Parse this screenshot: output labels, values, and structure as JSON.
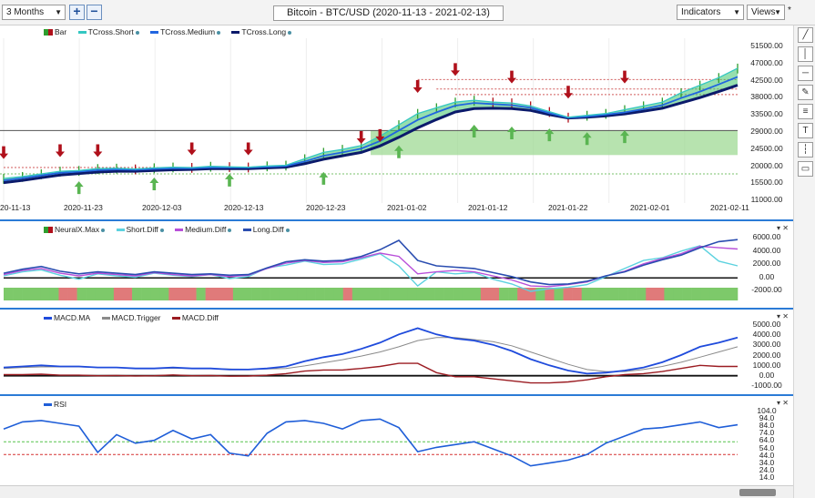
{
  "toolbar": {
    "range_select": "3 Months",
    "zoom_in": "+",
    "zoom_out": "−",
    "title": "Bitcoin - BTC/USD (2020-11-13 - 2021-02-13)",
    "indicators_label": "Indicators",
    "views_label": "Views",
    "pin": "*"
  },
  "right_toolbar": [
    "line-tool-icon",
    "vertical-line-icon",
    "horizontal-line-icon",
    "pencil-icon",
    "fibonacci-icon",
    "text-icon",
    "vertical-dotted-icon",
    "comment-icon"
  ],
  "colors": {
    "short": "#35c7c2",
    "medium": "#2166e0",
    "long": "#0b1a6b",
    "up": "#2e9e2e",
    "down": "#b0101b",
    "neural_green": "#7dc96a",
    "neural_red": "#e07a7a",
    "short_diff": "#5cd2df",
    "medium_diff": "#b84fd9",
    "long_diff": "#2a4db0",
    "macd_ma": "#1f4bdc",
    "macd_trigger": "#8a8a8a",
    "macd_diff": "#9b1c22",
    "rsi": "#1f5ed8"
  },
  "price_panel": {
    "legend": {
      "bar": "Bar",
      "short": "TCross.Short",
      "medium": "TCross.Medium",
      "long": "TCross.Long"
    },
    "y_ticks": [
      "51500.00",
      "47000.00",
      "42500.00",
      "38000.00",
      "33500.00",
      "29000.00",
      "24500.00",
      "20000.00",
      "15500.00",
      "11000.00"
    ],
    "x_ticks": [
      "20-11-13",
      "2020-11-23",
      "2020-12-03",
      "2020-12-13",
      "2020-12-23",
      "2021-01-02",
      "2021-01-12",
      "2021-01-22",
      "2021-02-01",
      "2021-02-11"
    ]
  },
  "neural_panel": {
    "legend": {
      "neural": "NeuralX.Max",
      "short": "Short.Diff",
      "medium": "Medium.Diff",
      "long": "Long.Diff"
    },
    "y_ticks": [
      "6000.00",
      "4000.00",
      "2000.00",
      "0.00",
      "-2000.00"
    ]
  },
  "macd_panel": {
    "legend": {
      "ma": "MACD.MA",
      "trigger": "MACD.Trigger",
      "diff": "MACD.Diff"
    },
    "y_ticks": [
      "5000.00",
      "4000.00",
      "3000.00",
      "2000.00",
      "1000.00",
      "0.00",
      "-1000.00"
    ]
  },
  "rsi_panel": {
    "legend": {
      "rsi": "RSI"
    },
    "y_ticks": [
      "104.0",
      "94.0",
      "84.0",
      "74.0",
      "64.0",
      "54.0",
      "44.0",
      "34.0",
      "24.0",
      "14.0"
    ]
  },
  "chart_data": [
    {
      "type": "line",
      "title": "Bitcoin - BTC/USD (2020-11-13 - 2021-02-13)",
      "x_start": "2020-11-13",
      "x_end": "2021-02-11",
      "ylim": [
        11000,
        51500
      ],
      "series": [
        {
          "name": "TCross.Short",
          "values": [
            16300,
            16800,
            17500,
            18200,
            18400,
            18900,
            19000,
            18800,
            19100,
            19300,
            19200,
            19500,
            19400,
            19300,
            19600,
            19800,
            21500,
            23200,
            24000,
            25000,
            27500,
            30500,
            33500,
            35000,
            36500,
            37000,
            36500,
            36300,
            35500,
            34000,
            32500,
            33000,
            33500,
            34500,
            35500,
            36500,
            39000,
            41000,
            43000,
            45500
          ]
        },
        {
          "name": "TCross.Medium",
          "values": [
            15800,
            16400,
            17100,
            17800,
            18100,
            18500,
            18700,
            18600,
            18800,
            19000,
            19000,
            19200,
            19200,
            19200,
            19400,
            19600,
            20800,
            22300,
            23200,
            24200,
            26200,
            29000,
            31800,
            33800,
            35600,
            36300,
            36000,
            35700,
            35000,
            33600,
            32400,
            32700,
            33200,
            33800,
            34700,
            35700,
            37600,
            39300,
            41200,
            43200
          ]
        },
        {
          "name": "TCross.Long",
          "values": [
            15200,
            15800,
            16500,
            17200,
            17600,
            18000,
            18200,
            18200,
            18400,
            18600,
            18700,
            18900,
            18900,
            18900,
            19100,
            19300,
            20200,
            21400,
            22300,
            23200,
            24900,
            27200,
            29700,
            31900,
            33900,
            34800,
            34900,
            34800,
            34300,
            33200,
            32300,
            32500,
            32900,
            33400,
            34100,
            34900,
            36300,
            37700,
            39300,
            41000
          ]
        }
      ]
    },
    {
      "type": "line",
      "ylim": [
        -2000,
        6000
      ],
      "series": [
        {
          "name": "Short.Diff",
          "values": [
            300,
            900,
            1200,
            400,
            -200,
            600,
            300,
            100,
            700,
            400,
            200,
            500,
            -100,
            200,
            1500,
            1900,
            2500,
            2000,
            2100,
            2800,
            3600,
            1800,
            -1200,
            900,
            600,
            800,
            -200,
            -900,
            -2000,
            -1600,
            -1400,
            -1000,
            200,
            1400,
            2600,
            3000,
            4000,
            4800,
            2500,
            1800
          ]
        },
        {
          "name": "Medium.Diff",
          "values": [
            500,
            1100,
            1400,
            700,
            300,
            700,
            500,
            300,
            800,
            500,
            300,
            500,
            200,
            400,
            1400,
            2200,
            2600,
            2300,
            2400,
            3000,
            3700,
            3200,
            600,
            900,
            1100,
            900,
            300,
            -300,
            -1200,
            -1300,
            -1000,
            -600,
            300,
            1000,
            2100,
            2900,
            3600,
            4700,
            4500,
            4300
          ]
        },
        {
          "name": "Long.Diff",
          "values": [
            700,
            1300,
            1700,
            1000,
            600,
            900,
            700,
            500,
            900,
            700,
            500,
            600,
            400,
            500,
            1500,
            2400,
            2700,
            2500,
            2600,
            3200,
            4200,
            5600,
            2600,
            1800,
            1600,
            1400,
            800,
            200,
            -600,
            -1000,
            -900,
            -500,
            300,
            900,
            1900,
            2700,
            3400,
            4500,
            5400,
            5700
          ]
        }
      ]
    },
    {
      "type": "line",
      "ylim": [
        -1000,
        5000
      ],
      "series": [
        {
          "name": "MACD.MA",
          "values": [
            800,
            900,
            1000,
            900,
            900,
            800,
            800,
            700,
            700,
            800,
            700,
            700,
            600,
            600,
            700,
            900,
            1400,
            1800,
            2100,
            2600,
            3200,
            4000,
            4600,
            4000,
            3600,
            3400,
            3000,
            2400,
            1600,
            1000,
            500,
            200,
            300,
            500,
            800,
            1300,
            2000,
            2800,
            3200,
            3700
          ]
        },
        {
          "name": "MACD.Trigger",
          "values": [
            700,
            800,
            850,
            850,
            850,
            800,
            780,
            720,
            700,
            720,
            700,
            680,
            650,
            630,
            650,
            700,
            950,
            1250,
            1550,
            1900,
            2300,
            2800,
            3400,
            3700,
            3700,
            3500,
            3300,
            2900,
            2300,
            1700,
            1100,
            600,
            400,
            400,
            600,
            900,
            1300,
            1800,
            2300,
            2800
          ]
        },
        {
          "name": "MACD.Diff",
          "values": [
            100,
            100,
            150,
            50,
            50,
            0,
            20,
            -20,
            0,
            80,
            0,
            20,
            -50,
            -30,
            50,
            200,
            450,
            550,
            550,
            700,
            900,
            1200,
            1200,
            300,
            -100,
            -100,
            -300,
            -500,
            -700,
            -700,
            -600,
            -400,
            -100,
            100,
            200,
            400,
            700,
            1000,
            900,
            900
          ]
        }
      ]
    },
    {
      "type": "line",
      "ylim": [
        14,
        104
      ],
      "series": [
        {
          "name": "RSI",
          "values": [
            78,
            88,
            90,
            86,
            82,
            45,
            70,
            58,
            62,
            76,
            64,
            70,
            44,
            40,
            72,
            88,
            90,
            86,
            78,
            90,
            92,
            80,
            46,
            52,
            56,
            60,
            50,
            40,
            26,
            30,
            34,
            42,
            58,
            68,
            78,
            80,
            84,
            88,
            80,
            84
          ]
        }
      ]
    }
  ]
}
